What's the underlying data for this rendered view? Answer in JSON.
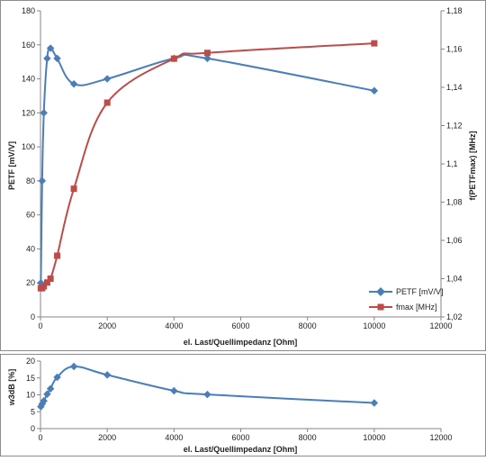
{
  "chart_data": [
    {
      "type": "line",
      "xlabel": "el. Last/Quellimpedanz [Ohm]",
      "ylabel": "PETF  [mV/V]",
      "y2label": "f(PETFmax) [MHz]",
      "xlim": [
        0,
        12000
      ],
      "ylim": [
        0,
        180
      ],
      "y2lim": [
        1.02,
        1.18
      ],
      "x_ticks": [
        "0",
        "2000",
        "4000",
        "6000",
        "8000",
        "10000",
        "12000"
      ],
      "y_ticks": [
        "0",
        "20",
        "40",
        "60",
        "80",
        "100",
        "120",
        "140",
        "160",
        "180"
      ],
      "y2_ticks": [
        "1,02",
        "1,04",
        "1,06",
        "1,08",
        "1,1",
        "1,12",
        "1,14",
        "1,16",
        "1,18"
      ],
      "grid": false,
      "legend_position": "bottom-right",
      "series": [
        {
          "name": "PETF [mV/V]",
          "axis": "left",
          "color": "#4a7ebb",
          "marker": "diamond",
          "x": [
            10,
            50,
            100,
            200,
            300,
            500,
            1000,
            2000,
            4000,
            5000,
            10000
          ],
          "y": [
            20,
            80,
            120,
            152,
            158,
            152,
            137,
            140,
            152,
            152,
            133
          ]
        },
        {
          "name": "fmax [MHz]",
          "axis": "right",
          "color": "#be4b48",
          "marker": "square",
          "x": [
            10,
            50,
            100,
            200,
            300,
            500,
            1000,
            2000,
            4000,
            5000,
            10000
          ],
          "y": [
            1.035,
            1.035,
            1.036,
            1.038,
            1.04,
            1.052,
            1.087,
            1.132,
            1.155,
            1.158,
            1.163
          ]
        }
      ]
    },
    {
      "type": "line",
      "xlabel": "el. Last/Quellimpedanz [Ohm]",
      "ylabel": "w3dB [%]",
      "xlim": [
        0,
        12000
      ],
      "ylim": [
        0,
        20
      ],
      "x_ticks": [
        "0",
        "2000",
        "4000",
        "6000",
        "8000",
        "10000",
        "12000"
      ],
      "y_ticks": [
        "0",
        "5",
        "10",
        "15",
        "20"
      ],
      "grid": false,
      "series": [
        {
          "color": "#4a7ebb",
          "marker": "diamond",
          "x": [
            10,
            50,
            100,
            200,
            300,
            500,
            1000,
            2000,
            4000,
            5000,
            10000
          ],
          "y": [
            6.5,
            7.3,
            8.2,
            10.2,
            11.8,
            15.2,
            18.4,
            15.9,
            11.2,
            10.1,
            7.6
          ]
        }
      ]
    }
  ]
}
